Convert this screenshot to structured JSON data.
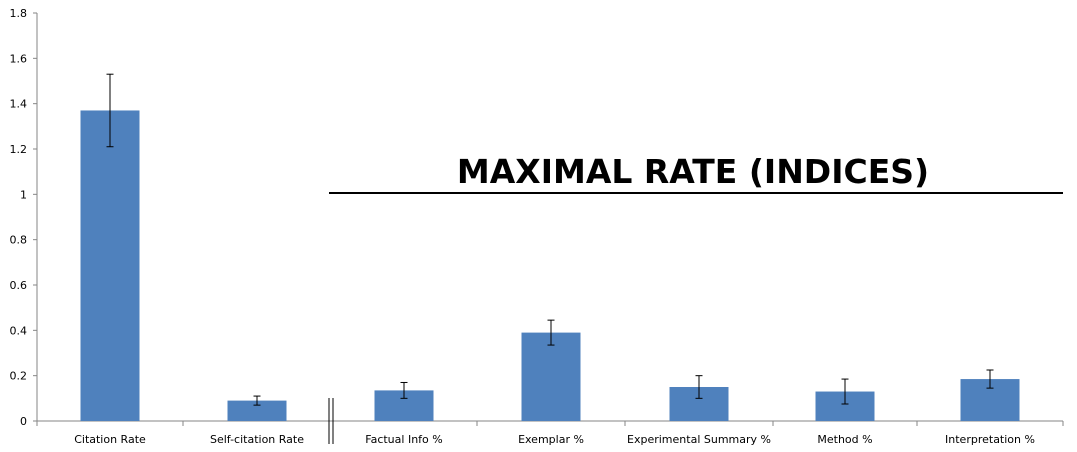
{
  "chart_data": {
    "type": "bar",
    "title": "MAXIMAL RATE (INDICES)",
    "xlabel": "",
    "ylabel": "",
    "ylim": [
      0,
      1.8
    ],
    "ytick_step": 0.2,
    "yticks": [
      "0",
      "0.2",
      "0.4",
      "0.6",
      "0.8",
      "1",
      "1.2",
      "1.4",
      "1.6",
      "1.8"
    ],
    "categories": [
      "Citation Rate",
      "Self-citation Rate",
      "Factual Info %",
      "Exemplar %",
      "Experimental Summary %",
      "Method %",
      "Interpretation %"
    ],
    "values": [
      1.37,
      0.09,
      0.135,
      0.39,
      0.15,
      0.13,
      0.185
    ],
    "errors": [
      0.16,
      0.02,
      0.035,
      0.055,
      0.05,
      0.055,
      0.04
    ],
    "bar_color": "#4f81bd",
    "grid": false,
    "axis_break_after_index": 1
  }
}
